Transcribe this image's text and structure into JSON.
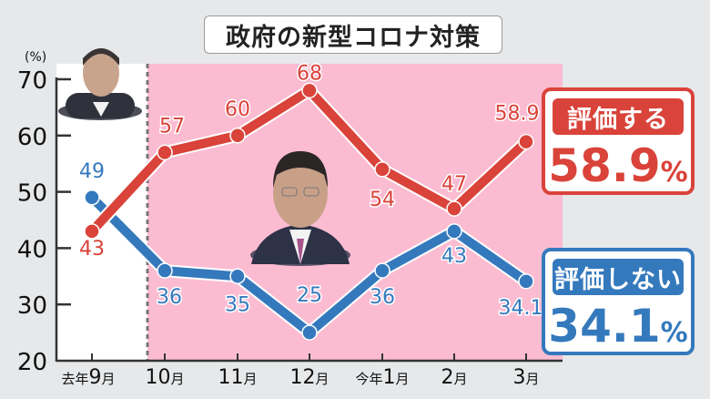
{
  "title": "政府の新型コロナ対策",
  "unit_label": "(%)",
  "colors": {
    "positive": "#d9433a",
    "negative": "#3579bd",
    "pink_background": "#fbbcd2",
    "page_background": "#e6e8ea"
  },
  "legend": {
    "positive": {
      "label": "評価する",
      "value": "58.9",
      "suffix": "%"
    },
    "negative": {
      "label": "評価しない",
      "value": "34.1",
      "suffix": "%"
    }
  },
  "chart_data": {
    "type": "line",
    "title": "政府の新型コロナ対策",
    "xlabel": "",
    "ylabel": "(%)",
    "ylim": [
      20,
      70
    ],
    "yticks": [
      20,
      30,
      40,
      50,
      60,
      70
    ],
    "categories": [
      "去年9月",
      "10月",
      "11月",
      "12月",
      "今年1月",
      "2月",
      "3月"
    ],
    "series": [
      {
        "name": "評価する",
        "values": [
          43,
          57,
          60,
          68,
          54,
          47,
          58.9
        ],
        "labels": [
          "43",
          "57",
          "60",
          "68",
          "54",
          "47",
          "58.9"
        ]
      },
      {
        "name": "評価しない",
        "values": [
          49,
          36,
          35,
          25,
          36,
          43,
          34.1
        ],
        "labels": [
          "49",
          "36",
          "35",
          "25",
          "36",
          "43",
          "34.1"
        ]
      }
    ],
    "annotations": [
      "Dashed divider between 去年9月 and 10月 (change of administration); pink shaded region from 10月 to 3月"
    ],
    "grid": false,
    "legend_position": "right"
  }
}
